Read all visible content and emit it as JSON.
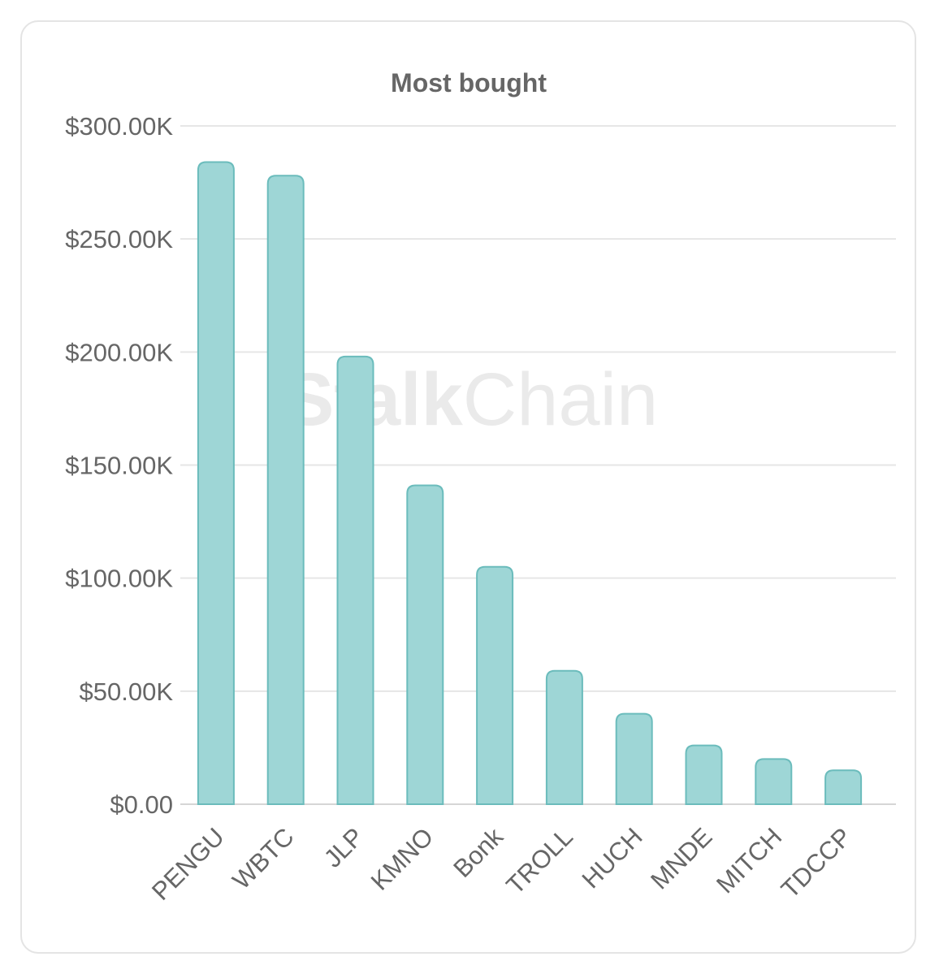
{
  "chart_data": {
    "type": "bar",
    "title": "Most bought",
    "xlabel": "",
    "ylabel": "",
    "categories": [
      "PENGU",
      "WBTC",
      "JLP",
      "KMNO",
      "Bonk",
      "TROLL",
      "HUCH",
      "MNDE",
      "MITCH",
      "TDCCP"
    ],
    "values": [
      284000,
      278000,
      198000,
      141000,
      105000,
      59000,
      40000,
      26000,
      20000,
      15000
    ],
    "ylim": [
      0,
      300000
    ],
    "yticks": [
      0,
      50000,
      100000,
      150000,
      200000,
      250000,
      300000
    ],
    "ytick_labels": [
      "$0.00",
      "$50.00K",
      "$100.00K",
      "$150.00K",
      "$200.00K",
      "$250.00K",
      "$300.00K"
    ],
    "grid": true,
    "legend": "none",
    "bar_fill": "#9ed6d6",
    "bar_stroke": "#6bbcbc"
  },
  "watermark": {
    "bold_part": "Stalk",
    "regular_part": "Chain"
  }
}
